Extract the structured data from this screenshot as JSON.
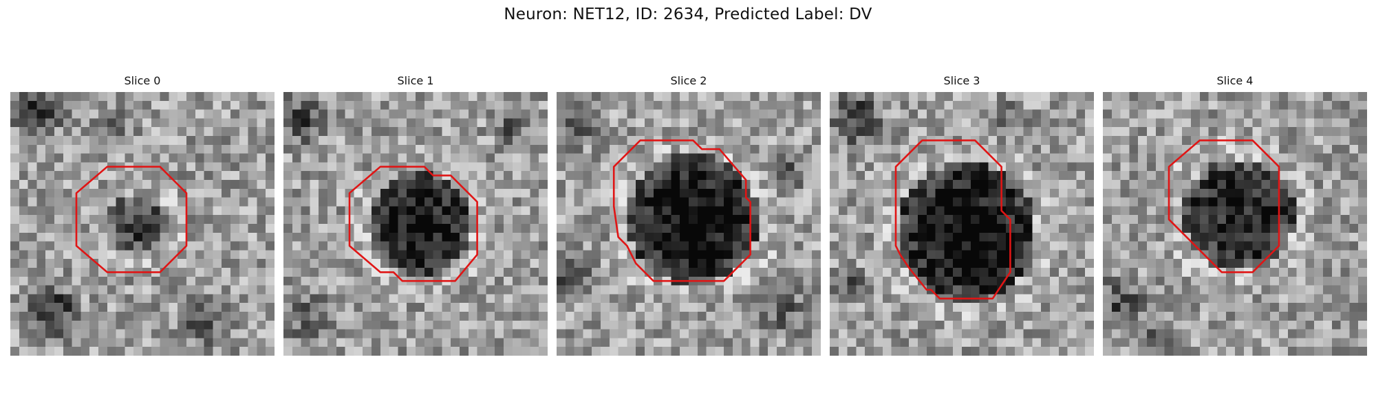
{
  "figure": {
    "title": "Neuron: NET12, ID: 2634, Predicted Label: DV"
  },
  "panels": [
    {
      "title": "Slice 0"
    },
    {
      "title": "Slice 1"
    },
    {
      "title": "Slice 2"
    },
    {
      "title": "Slice 3"
    },
    {
      "title": "Slice 4"
    }
  ],
  "colors": {
    "outline": "#e01515"
  }
}
